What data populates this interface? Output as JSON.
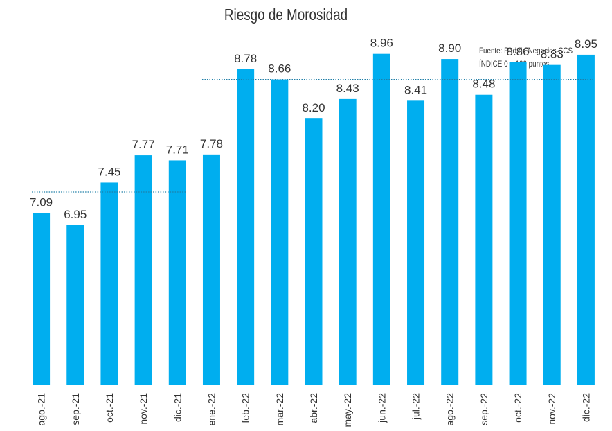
{
  "chart_data": {
    "type": "bar",
    "title": "Riesgo de Morosidad",
    "source": "Fuente: Red de Negocios CCS",
    "unit_note": "ÍNDICE 0 a 100  puntos",
    "categories": [
      "ago.-21",
      "sep.-21",
      "oct.-21",
      "nov.-21",
      "dic.-21",
      "ene.-22",
      "feb.-22",
      "mar.-22",
      "abr.-22",
      "may.-22",
      "jun.-22",
      "jul.-22",
      "ago.-22",
      "sep.-22",
      "oct.-22",
      "nov.-22",
      "dic.-22"
    ],
    "values": [
      7.09,
      6.95,
      7.45,
      7.77,
      7.71,
      7.78,
      8.78,
      8.66,
      8.2,
      8.43,
      8.96,
      8.41,
      8.9,
      8.48,
      8.86,
      8.83,
      8.95
    ],
    "value_labels": [
      "7.09",
      "6.95",
      "7.45",
      "7.77",
      "7.71",
      "7.78",
      "8.78",
      "8.66",
      "8.20",
      "8.43",
      "8.96",
      "8.41",
      "8.90",
      "8.48",
      "8.86",
      "8.83",
      "8.95"
    ],
    "reference_lines": [
      {
        "value": 7.34,
        "from_index": 0,
        "to_index": 4
      },
      {
        "value": 8.66,
        "from_index": 5,
        "to_index": 16
      }
    ],
    "bar_color": "#00AEEF",
    "reference_line_color": "#1F7FA8",
    "ylim": [
      5.08,
      9.12
    ],
    "grid": false,
    "legend": "none"
  }
}
